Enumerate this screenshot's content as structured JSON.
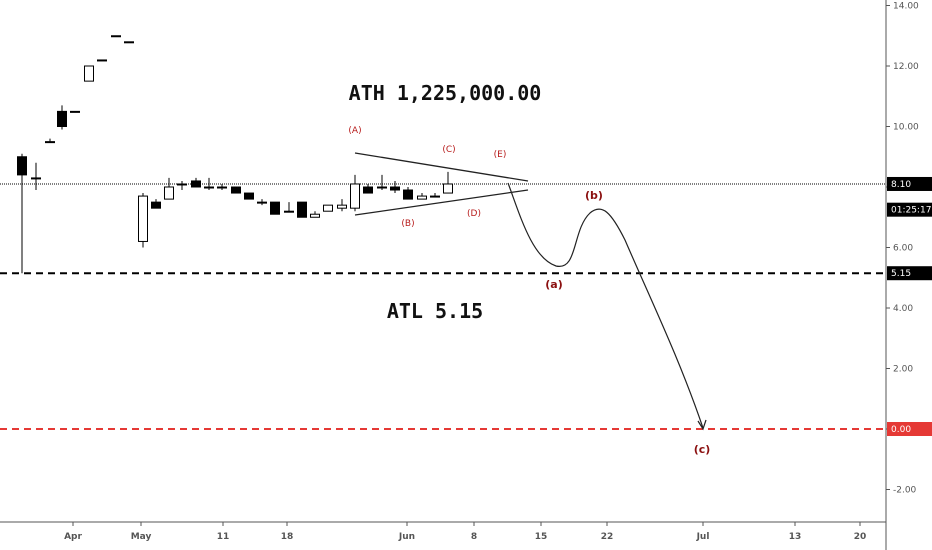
{
  "chart_data": {
    "type": "candlestick",
    "y_axis": {
      "ticks": [
        {
          "value": 14,
          "label": "14.00"
        },
        {
          "value": 12,
          "label": "12.00"
        },
        {
          "value": 10,
          "label": "10.00"
        },
        {
          "value": 8,
          "label": "8.00"
        },
        {
          "value": 6,
          "label": "6.00"
        },
        {
          "value": 4,
          "label": "4.00"
        },
        {
          "value": 2,
          "label": "2.00"
        },
        {
          "value": 0,
          "label": "0.00"
        },
        {
          "value": -2,
          "label": "-2.00"
        }
      ],
      "range": [
        -3.1,
        14.1
      ]
    },
    "x_axis": {
      "ticks": [
        "Apr",
        "May",
        "11",
        "18",
        "Jun",
        "8",
        "15",
        "22",
        "Jul",
        "13",
        "20"
      ]
    },
    "candles": [
      {
        "o": 9.0,
        "h": 9.1,
        "l": 5.15,
        "c": 8.4
      },
      {
        "o": 8.3,
        "h": 8.8,
        "l": 7.9,
        "c": 8.3
      },
      {
        "o": 9.5,
        "h": 9.6,
        "l": 9.5,
        "c": 9.5
      },
      {
        "o": 10.5,
        "h": 10.7,
        "l": 9.9,
        "c": 10.0
      },
      {
        "o": 10.5,
        "h": 10.5,
        "l": 10.5,
        "c": 10.5
      },
      {
        "o": 11.5,
        "h": 12.0,
        "l": 11.5,
        "c": 12.0
      },
      {
        "o": 12.2,
        "h": 12.2,
        "l": 12.2,
        "c": 12.2
      },
      {
        "o": 13.0,
        "h": 13.0,
        "l": 13.0,
        "c": 13.0
      },
      {
        "o": 12.8,
        "h": 12.8,
        "l": 12.8,
        "c": 12.8
      },
      {
        "o": 6.2,
        "h": 7.8,
        "l": 6.0,
        "c": 7.7
      },
      {
        "o": 7.5,
        "h": 7.6,
        "l": 7.3,
        "c": 7.3
      },
      {
        "o": 7.6,
        "h": 8.3,
        "l": 7.6,
        "c": 8.0
      },
      {
        "o": 8.1,
        "h": 8.2,
        "l": 7.9,
        "c": 8.1
      },
      {
        "o": 8.2,
        "h": 8.3,
        "l": 8.0,
        "c": 8.0
      },
      {
        "o": 8.0,
        "h": 8.3,
        "l": 7.9,
        "c": 8.0
      },
      {
        "o": 8.0,
        "h": 8.1,
        "l": 7.9,
        "c": 8.0
      },
      {
        "o": 8.0,
        "h": 8.0,
        "l": 7.8,
        "c": 7.8
      },
      {
        "o": 7.8,
        "h": 7.8,
        "l": 7.6,
        "c": 7.6
      },
      {
        "o": 7.5,
        "h": 7.6,
        "l": 7.4,
        "c": 7.5
      },
      {
        "o": 7.5,
        "h": 7.5,
        "l": 7.1,
        "c": 7.1
      },
      {
        "o": 7.2,
        "h": 7.5,
        "l": 7.2,
        "c": 7.2
      },
      {
        "o": 7.5,
        "h": 7.5,
        "l": 7.0,
        "c": 7.0
      },
      {
        "o": 7.0,
        "h": 7.2,
        "l": 7.0,
        "c": 7.1
      },
      {
        "o": 7.2,
        "h": 7.4,
        "l": 7.2,
        "c": 7.4
      },
      {
        "o": 7.3,
        "h": 7.6,
        "l": 7.2,
        "c": 7.4
      },
      {
        "o": 7.3,
        "h": 8.4,
        "l": 7.2,
        "c": 8.1
      },
      {
        "o": 8.0,
        "h": 8.1,
        "l": 7.8,
        "c": 7.8
      },
      {
        "o": 8.0,
        "h": 8.4,
        "l": 7.9,
        "c": 8.0
      },
      {
        "o": 8.0,
        "h": 8.2,
        "l": 7.8,
        "c": 7.9
      },
      {
        "o": 7.9,
        "h": 8.0,
        "l": 7.6,
        "c": 7.6
      },
      {
        "o": 7.6,
        "h": 7.8,
        "l": 7.6,
        "c": 7.7
      },
      {
        "o": 7.7,
        "h": 7.8,
        "l": 7.7,
        "c": 7.7
      },
      {
        "o": 7.8,
        "h": 8.5,
        "l": 7.8,
        "c": 8.1
      }
    ],
    "horizontal_lines": [
      {
        "value": 8.1,
        "style": "dotted",
        "color": "#000000"
      },
      {
        "value": 5.15,
        "style": "dashed",
        "color": "#000000"
      },
      {
        "value": 0.0,
        "style": "dashed",
        "color": "#e53935"
      }
    ],
    "price_badges": [
      {
        "value": 8.1,
        "label": "8.10",
        "color": "#000000"
      },
      {
        "value": 7.25,
        "label": "01:25:17",
        "color": "#000000"
      },
      {
        "value": 5.15,
        "label": "5.15",
        "color": "#000000"
      },
      {
        "value": 0.0,
        "label": "0.00",
        "color": "#e53935"
      }
    ],
    "annotations": {
      "ath": "ATH 1,225,000.00",
      "atl": "ATL 5.15",
      "triangle_points": [
        "(A)",
        "(B)",
        "(C)",
        "(D)",
        "(E)"
      ],
      "projection_points": [
        "(a)",
        "(b)",
        "(c)"
      ]
    },
    "colors": {
      "text_dark": "#111111",
      "label_red": "#b71c1c",
      "line_red": "#e53935"
    }
  }
}
